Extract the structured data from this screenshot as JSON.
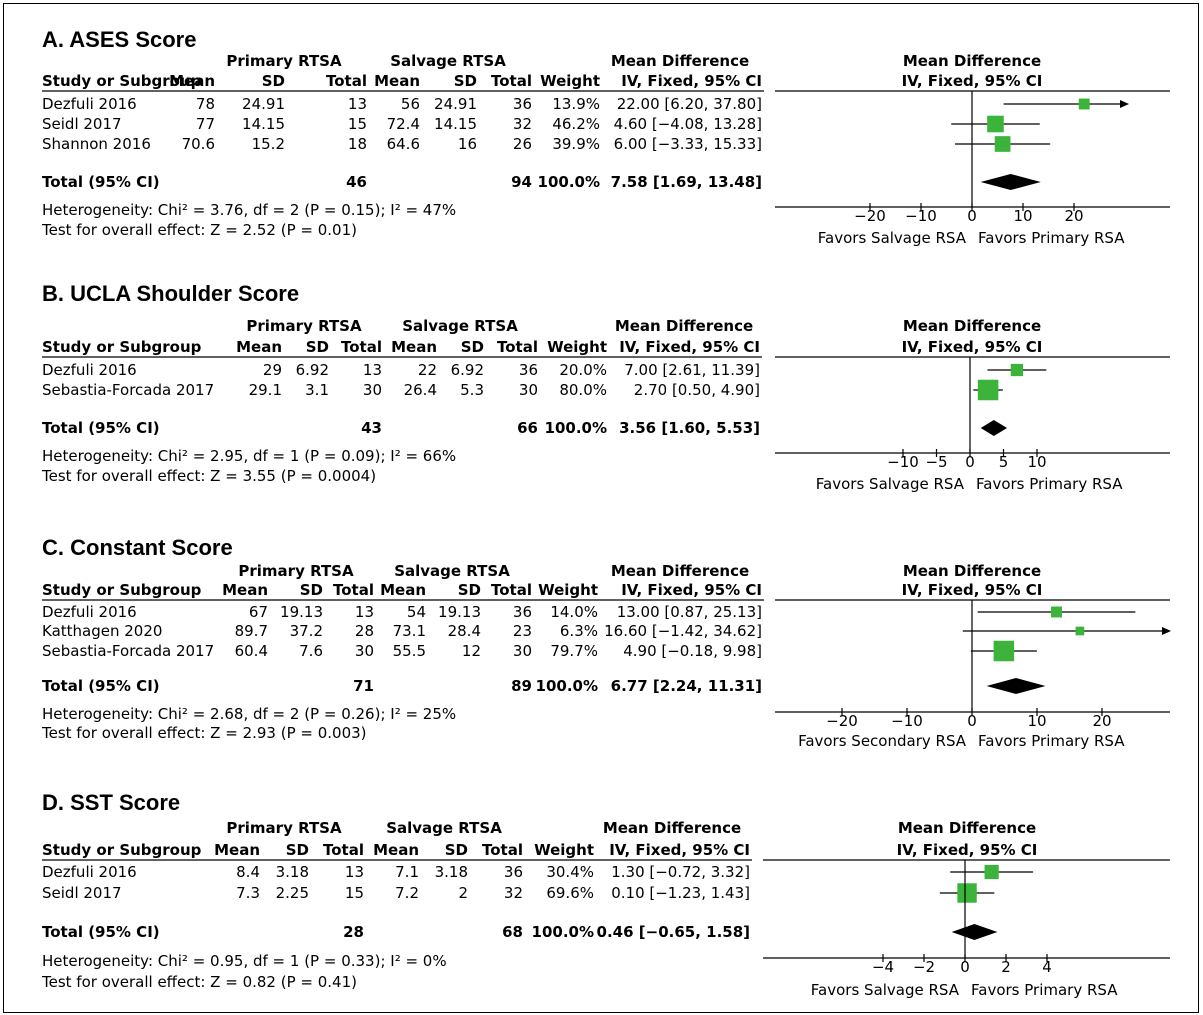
{
  "headers": {
    "study": "Study or Subgroup",
    "primary": "Primary RTSA",
    "salvage": "Salvage RTSA",
    "mean": "Mean",
    "sd": "SD",
    "total": "Total",
    "weight": "Weight",
    "md": "Mean Difference",
    "md_sub": "IV, Fixed, 95% CI"
  },
  "colors": {
    "marker": "#3cb43c",
    "line": "#000000",
    "diamond": "#000000"
  },
  "chart_data": [
    {
      "type": "forest",
      "title": "A. ASES Score",
      "xlim": [
        -30,
        30
      ],
      "ticks": [
        "-20",
        "-10",
        "0",
        "10",
        "20"
      ],
      "tick_values": [
        -20,
        -10,
        0,
        10,
        20
      ],
      "favors_left": "Favors Salvage RSA",
      "favors_right": "Favors Primary RSA",
      "studies": [
        {
          "name": "Dezfuli 2016",
          "p_mean": "78",
          "p_sd": "24.91",
          "p_total": "13",
          "s_mean": "56",
          "s_sd": "24.91",
          "s_total": "36",
          "weight": "13.9%",
          "ci": "22.00 [6.20, 37.80]",
          "md": 22.0,
          "lo": 6.2,
          "hi": 37.8,
          "w": 13.9
        },
        {
          "name": "Seidl 2017",
          "p_mean": "77",
          "p_sd": "14.15",
          "p_total": "15",
          "s_mean": "72.4",
          "s_sd": "14.15",
          "s_total": "32",
          "weight": "46.2%",
          "ci": "4.60 [-4.08, 13.28]",
          "md": 4.6,
          "lo": -4.08,
          "hi": 13.28,
          "w": 46.2
        },
        {
          "name": "Shannon 2016",
          "p_mean": "70.6",
          "p_sd": "15.2",
          "p_total": "18",
          "s_mean": "64.6",
          "s_sd": "16",
          "s_total": "26",
          "weight": "39.9%",
          "ci": "6.00 [-3.33, 15.33]",
          "md": 6.0,
          "lo": -3.33,
          "hi": 15.33,
          "w": 39.9
        }
      ],
      "total": {
        "label": "Total (95% CI)",
        "p_total": "46",
        "s_total": "94",
        "weight": "100.0%",
        "ci": "7.58 [1.69, 13.48]",
        "md": 7.58,
        "lo": 1.69,
        "hi": 13.48
      },
      "heterogeneity": "Heterogeneity: Chi² = 3.76, df = 2 (P = 0.15); I² = 47%",
      "overall": "Test for overall effect: Z = 2.52 (P = 0.01)"
    },
    {
      "type": "forest",
      "title": "B. UCLA Shoulder Score",
      "xlim": [
        -15,
        15
      ],
      "ticks": [
        "-10",
        "-5",
        "0",
        "5",
        "10"
      ],
      "tick_values": [
        -10,
        -5,
        0,
        5,
        10
      ],
      "favors_left": "Favors Salvage RSA",
      "favors_right": "Favors Primary RSA",
      "studies": [
        {
          "name": "Dezfuli 2016",
          "p_mean": "29",
          "p_sd": "6.92",
          "p_total": "13",
          "s_mean": "22",
          "s_sd": "6.92",
          "s_total": "36",
          "weight": "20.0%",
          "ci": "7.00 [2.61, 11.39]",
          "md": 7.0,
          "lo": 2.61,
          "hi": 11.39,
          "w": 20.0
        },
        {
          "name": "Sebastia-Forcada 2017",
          "p_mean": "29.1",
          "p_sd": "3.1",
          "p_total": "30",
          "s_mean": "26.4",
          "s_sd": "5.3",
          "s_total": "30",
          "weight": "80.0%",
          "ci": "2.70 [0.50, 4.90]",
          "md": 2.7,
          "lo": 0.5,
          "hi": 4.9,
          "w": 80.0
        }
      ],
      "total": {
        "label": "Total (95% CI)",
        "p_total": "43",
        "s_total": "66",
        "weight": "100.0%",
        "ci": "3.56 [1.60, 5.53]",
        "md": 3.56,
        "lo": 1.6,
        "hi": 5.53
      },
      "heterogeneity": "Heterogeneity: Chi² = 2.95, df = 1 (P = 0.09); I² = 66%",
      "overall": "Test for overall effect: Z = 3.55 (P = 0.0004)"
    },
    {
      "type": "forest",
      "title": "C. Constant Score",
      "xlim": [
        -30,
        30
      ],
      "ticks": [
        "-20",
        "-10",
        "0",
        "10",
        "20"
      ],
      "tick_values": [
        -20,
        -10,
        0,
        10,
        20
      ],
      "favors_left": "Favors Secondary RSA",
      "favors_right": "Favors Primary RSA",
      "studies": [
        {
          "name": "Dezfuli 2016",
          "p_mean": "67",
          "p_sd": "19.13",
          "p_total": "13",
          "s_mean": "54",
          "s_sd": "19.13",
          "s_total": "36",
          "weight": "14.0%",
          "ci": "13.00 [0.87, 25.13]",
          "md": 13.0,
          "lo": 0.87,
          "hi": 25.13,
          "w": 14.0
        },
        {
          "name": "Katthagen 2020",
          "p_mean": "89.7",
          "p_sd": "37.2",
          "p_total": "28",
          "s_mean": "73.1",
          "s_sd": "28.4",
          "s_total": "23",
          "weight": "6.3%",
          "ci": "16.60 [-1.42, 34.62]",
          "md": 16.6,
          "lo": -1.42,
          "hi": 34.62,
          "w": 6.3
        },
        {
          "name": "Sebastia-Forcada 2017",
          "p_mean": "60.4",
          "p_sd": "7.6",
          "p_total": "30",
          "s_mean": "55.5",
          "s_sd": "12",
          "s_total": "30",
          "weight": "79.7%",
          "ci": "4.90 [-0.18, 9.98]",
          "md": 4.9,
          "lo": -0.18,
          "hi": 9.98,
          "w": 79.7
        }
      ],
      "total": {
        "label": "Total (95% CI)",
        "p_total": "71",
        "s_total": "89",
        "weight": "100.0%",
        "ci": "6.77 [2.24, 11.31]",
        "md": 6.77,
        "lo": 2.24,
        "hi": 11.31
      },
      "heterogeneity": "Heterogeneity: Chi² = 2.68, df = 2 (P = 0.26); I² = 25%",
      "overall": "Test for overall effect: Z = 2.93 (P = 0.003)"
    },
    {
      "type": "forest",
      "title": "D. SST Score",
      "xlim": [
        -5,
        5
      ],
      "ticks": [
        "-4",
        "-2",
        "0",
        "2",
        "4"
      ],
      "tick_values": [
        -4,
        -2,
        0,
        2,
        4
      ],
      "favors_left": "Favors Salvage RSA",
      "favors_right": "Favors Primary RSA",
      "studies": [
        {
          "name": "Dezfuli 2016",
          "p_mean": "8.4",
          "p_sd": "3.18",
          "p_total": "13",
          "s_mean": "7.1",
          "s_sd": "3.18",
          "s_total": "36",
          "weight": "30.4%",
          "ci": "1.30 [-0.72, 3.32]",
          "md": 1.3,
          "lo": -0.72,
          "hi": 3.32,
          "w": 30.4
        },
        {
          "name": "Seidl 2017",
          "p_mean": "7.3",
          "p_sd": "2.25",
          "p_total": "15",
          "s_mean": "7.2",
          "s_sd": "2",
          "s_total": "32",
          "weight": "69.6%",
          "ci": "0.10 [-1.23, 1.43]",
          "md": 0.1,
          "lo": -1.23,
          "hi": 1.43,
          "w": 69.6
        }
      ],
      "total": {
        "label": "Total (95% CI)",
        "p_total": "28",
        "s_total": "68",
        "weight": "100.0%",
        "ci": "0.46 [-0.65, 1.58]",
        "md": 0.46,
        "lo": -0.65,
        "hi": 1.58
      },
      "heterogeneity": "Heterogeneity: Chi² = 0.95, df = 1 (P = 0.33); I² = 0%",
      "overall": "Test for overall effect: Z = 0.82 (P = 0.41)"
    }
  ]
}
